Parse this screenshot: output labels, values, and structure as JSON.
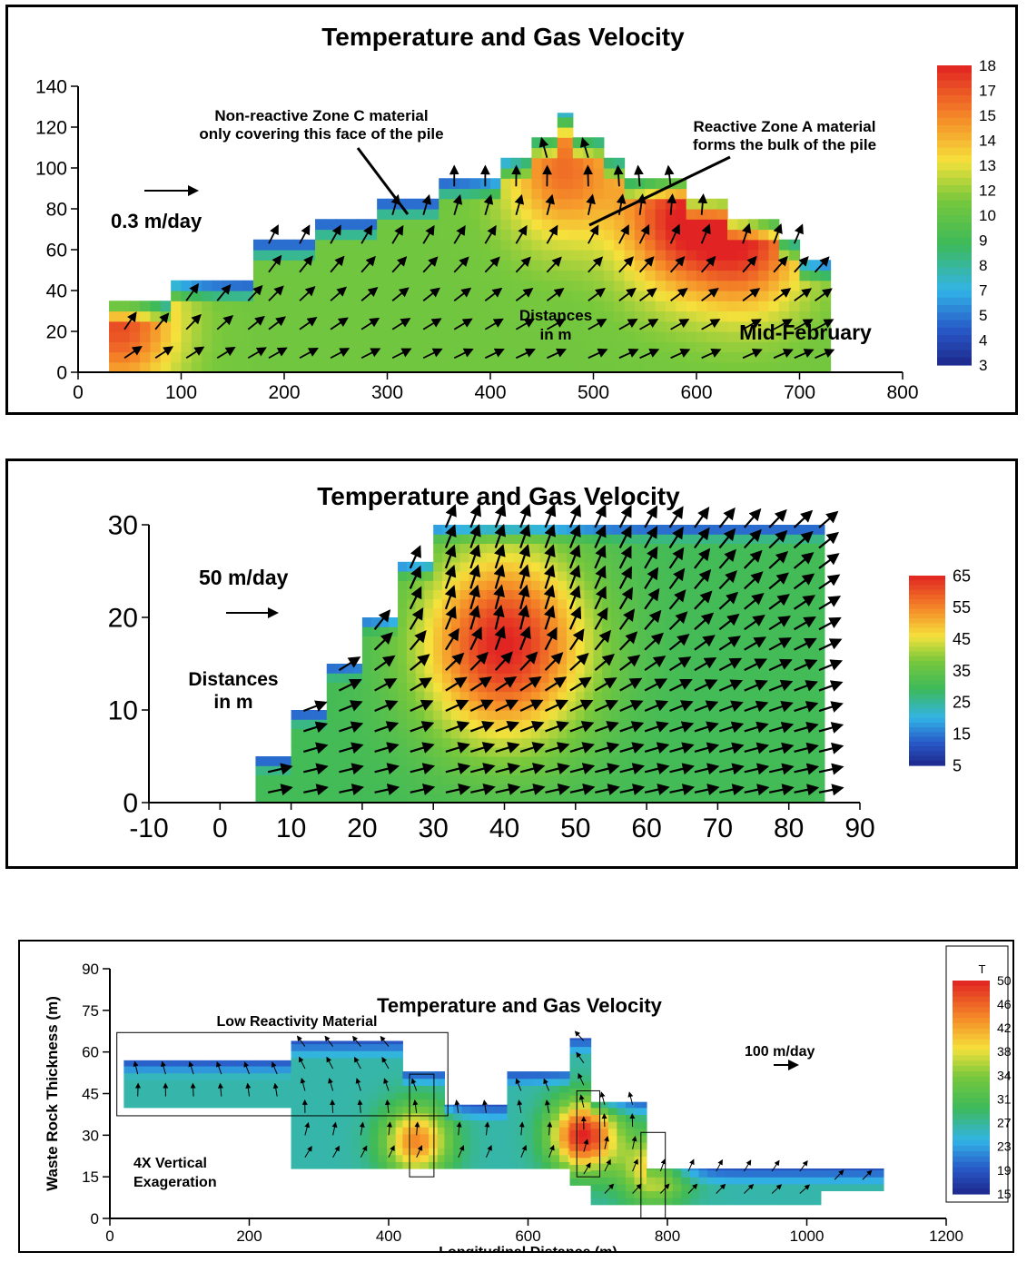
{
  "chart_data": [
    {
      "type": "heatmap",
      "title": "Temperature and Gas Velocity",
      "xlim": [
        0,
        800
      ],
      "ylim": [
        0,
        140
      ],
      "x_ticks": [
        "0",
        "100",
        "200",
        "300",
        "400",
        "500",
        "600",
        "700",
        "800"
      ],
      "y_ticks": [
        "0",
        "20",
        "40",
        "60",
        "80",
        "100",
        "120",
        "140"
      ],
      "colorbar_labels": [
        "18",
        "17",
        "15",
        "14",
        "13",
        "12",
        "10",
        "9",
        "8",
        "7",
        "5",
        "4",
        "3"
      ],
      "colorbar_range": [
        3,
        18
      ],
      "velocity_scale_label": "0.3 m/day",
      "annotations": {
        "zone_c": [
          "Non-reactive Zone C material",
          "only covering this face of the pile"
        ],
        "zone_a": [
          "Reactive Zone A material",
          "forms the bulk of the pile"
        ],
        "distances": [
          "Distances",
          "in m"
        ],
        "season": "Mid-February"
      },
      "profile_steps": [
        {
          "x0": 30,
          "x1": 90,
          "top": 35
        },
        {
          "x0": 90,
          "x1": 170,
          "top": 45
        },
        {
          "x0": 170,
          "x1": 230,
          "top": 65
        },
        {
          "x0": 230,
          "x1": 290,
          "top": 75
        },
        {
          "x0": 290,
          "x1": 350,
          "top": 85
        },
        {
          "x0": 350,
          "x1": 410,
          "top": 95
        },
        {
          "x0": 410,
          "x1": 440,
          "top": 105
        },
        {
          "x0": 440,
          "x1": 465,
          "top": 115
        },
        {
          "x0": 465,
          "x1": 480,
          "top": 127
        },
        {
          "x0": 480,
          "x1": 510,
          "top": 115
        },
        {
          "x0": 510,
          "x1": 530,
          "top": 105
        },
        {
          "x0": 530,
          "x1": 590,
          "top": 95
        },
        {
          "x0": 590,
          "x1": 630,
          "top": 85
        },
        {
          "x0": 630,
          "x1": 680,
          "top": 75
        },
        {
          "x0": 680,
          "x1": 700,
          "top": 65
        },
        {
          "x0": 700,
          "x1": 730,
          "top": 55
        }
      ],
      "hot_spots": [
        {
          "x": 40,
          "y": 25,
          "t": 17
        },
        {
          "x": 470,
          "y": 100,
          "t": 16
        },
        {
          "x": 580,
          "y": 75,
          "t": 17
        },
        {
          "x": 650,
          "y": 65,
          "t": 17
        }
      ],
      "base_temperature": 11
    },
    {
      "type": "heatmap",
      "title": "Temperature and Gas Velocity",
      "xlim": [
        -10,
        90
      ],
      "ylim": [
        0,
        30
      ],
      "x_ticks": [
        "-10",
        "0",
        "10",
        "20",
        "30",
        "40",
        "50",
        "60",
        "70",
        "80",
        "90"
      ],
      "y_ticks": [
        "0",
        "10",
        "20",
        "30"
      ],
      "colorbar_labels": [
        "65",
        "55",
        "45",
        "35",
        "25",
        "15",
        "5"
      ],
      "colorbar_range": [
        5,
        65
      ],
      "velocity_scale_label": "50 m/day",
      "annotations": {
        "distances": [
          "Distances",
          "in m"
        ]
      },
      "profile_steps": [
        {
          "x0": 5,
          "x1": 10,
          "top": 5
        },
        {
          "x0": 10,
          "x1": 15,
          "top": 10
        },
        {
          "x0": 15,
          "x1": 20,
          "top": 15
        },
        {
          "x0": 20,
          "x1": 25,
          "top": 20
        },
        {
          "x0": 25,
          "x1": 30,
          "top": 26
        },
        {
          "x0": 30,
          "x1": 85,
          "top": 30
        }
      ],
      "hot_spots": [
        {
          "x": 40,
          "y": 17,
          "t": 65
        }
      ],
      "base_temperature": 30
    },
    {
      "type": "heatmap",
      "title": "Temperature and Gas Velocity",
      "xlabel": "Longitudinal Distance (m)",
      "ylabel": "Waste Rock Thickness (m)",
      "xlim": [
        0,
        1200
      ],
      "ylim": [
        0,
        90
      ],
      "x_ticks": [
        "0",
        "200",
        "400",
        "600",
        "800",
        "1000",
        "1200"
      ],
      "y_ticks": [
        "0",
        "15",
        "30",
        "45",
        "60",
        "75",
        "90"
      ],
      "colorbar_title": "T",
      "colorbar_labels": [
        "50",
        "46",
        "42",
        "38",
        "34",
        "31",
        "27",
        "23",
        "19",
        "15"
      ],
      "colorbar_range": [
        15,
        50
      ],
      "velocity_scale_label": "100 m/day",
      "annotations": {
        "low_reactivity": "Low Reactivity Material",
        "vertical_exag": [
          "4X Vertical",
          "Exageration"
        ]
      },
      "profile_steps": [
        {
          "x0": 20,
          "x1": 260,
          "top": 57,
          "bottom": 40
        },
        {
          "x0": 260,
          "x1": 420,
          "top": 64,
          "bottom": 18
        },
        {
          "x0": 420,
          "x1": 480,
          "top": 53,
          "bottom": 18
        },
        {
          "x0": 480,
          "x1": 570,
          "top": 41,
          "bottom": 18
        },
        {
          "x0": 570,
          "x1": 660,
          "top": 53,
          "bottom": 18
        },
        {
          "x0": 660,
          "x1": 690,
          "top": 65,
          "bottom": 12
        },
        {
          "x0": 690,
          "x1": 770,
          "top": 42,
          "bottom": 5
        },
        {
          "x0": 770,
          "x1": 1020,
          "top": 18,
          "bottom": 5
        },
        {
          "x0": 1020,
          "x1": 1110,
          "top": 18,
          "bottom": 10
        }
      ],
      "hot_spots": [
        {
          "x": 440,
          "y": 28,
          "t": 44
        },
        {
          "x": 680,
          "y": 30,
          "t": 50
        },
        {
          "x": 780,
          "y": 18,
          "t": 40
        }
      ],
      "base_temperature": 26
    }
  ]
}
